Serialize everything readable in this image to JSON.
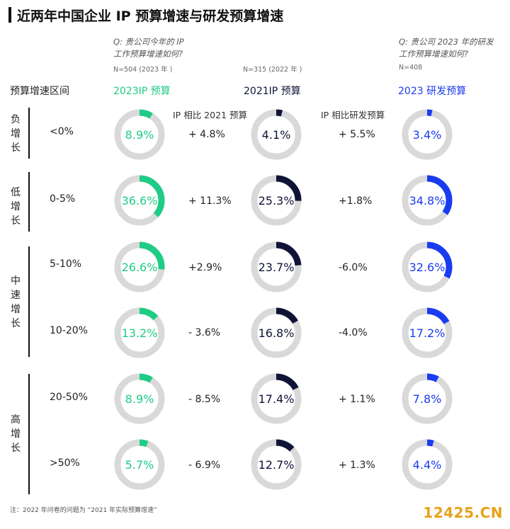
{
  "header": {
    "title": "近两年中国企业 IP 预算增速与研发预算增速",
    "q1_line1": "Q: 贵公司今年的 IP",
    "q1_line2": "工作预算增速如何?",
    "q2_line1": "Q: 贵公司 2023 年的研发",
    "q2_line2": "工作预算增速如何?",
    "n1": "N=504 (2023 年 )",
    "n2": "N=315 (2022 年 )",
    "n3": "N=408"
  },
  "labels": {
    "row_header": "预算增速区间",
    "cmp1": "IP 相比 2021 预算",
    "cmp2": "IP 相比研发预算"
  },
  "groups": [
    {
      "chars": [
        "负",
        "增",
        "长"
      ]
    },
    {
      "chars": [
        "低",
        "增",
        "长"
      ]
    },
    {
      "chars": [
        "中",
        "速",
        "增",
        "长"
      ]
    },
    {
      "chars": [
        "高",
        "增",
        "长"
      ]
    }
  ],
  "footer": {
    "note": "注：2022 年问卷的问题为 “2021 年实际预算增速”",
    "watermark": "12425.CN"
  },
  "colors": {
    "ip2023": "#1fcc85",
    "ip2021": "#0f1437",
    "rd2023": "#1a3cf0",
    "track": "#d9d9d9"
  },
  "chart_data": {
    "type": "donut",
    "categories": [
      "<0%",
      "0-5%",
      "5-10%",
      "10-20%",
      "20-50%",
      ">50%"
    ],
    "series": [
      {
        "name": "2023IP 预算",
        "values": [
          8.9,
          36.6,
          26.6,
          13.2,
          8.9,
          5.7
        ],
        "labels": [
          "8.9%",
          "36.6%",
          "26.6%",
          "13.2%",
          "8.9%",
          "5.7%"
        ]
      },
      {
        "name": "2021IP 预算",
        "values": [
          4.1,
          25.3,
          23.7,
          16.8,
          17.4,
          12.7
        ],
        "labels": [
          "4.1%",
          "25.3%",
          "23.7%",
          "16.8%",
          "17.4%",
          "12.7%"
        ]
      },
      {
        "name": "2023 研发预算",
        "values": [
          3.4,
          34.8,
          32.6,
          17.2,
          7.8,
          4.4
        ],
        "labels": [
          "3.4%",
          "34.8%",
          "32.6%",
          "17.2%",
          "7.8%",
          "4.4%"
        ]
      }
    ],
    "cmp_2021": [
      "+ 4.8%",
      "+ 11.3%",
      "+2.9%",
      "- 3.6%",
      "- 8.5%",
      "- 6.9%"
    ],
    "cmp_rd": [
      "+ 5.5%",
      "+1.8%",
      "-6.0%",
      "-4.0%",
      "+ 1.1%",
      "+ 1.3%"
    ]
  }
}
